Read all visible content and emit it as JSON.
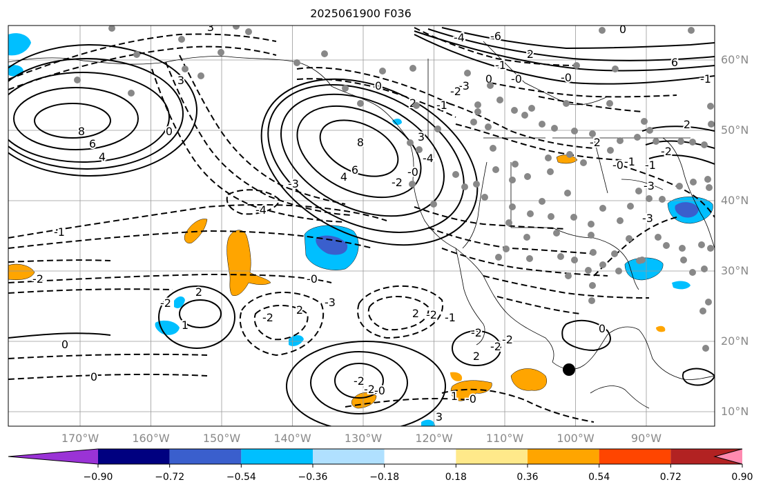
{
  "title": "2025061900 F036",
  "lat_labels": [
    {
      "text": "60°N",
      "lat": 60
    },
    {
      "text": "50°N",
      "lat": 50
    },
    {
      "text": "40°N",
      "lat": 40
    },
    {
      "text": "30°N",
      "lat": 30
    },
    {
      "text": "20°N",
      "lat": 20
    },
    {
      "text": "10°N",
      "lat": 10
    }
  ],
  "lon_labels": [
    {
      "text": "170°W",
      "lon": -170
    },
    {
      "text": "160°W",
      "lon": -160
    },
    {
      "text": "150°W",
      "lon": -150
    },
    {
      "text": "140°W",
      "lon": -140
    },
    {
      "text": "130°W",
      "lon": -130
    },
    {
      "text": "120°W",
      "lon": -120
    },
    {
      "text": "110°W",
      "lon": -110
    },
    {
      "text": "100°W",
      "lon": -100
    },
    {
      "text": "90°W",
      "lon": -90
    }
  ],
  "colorbar": {
    "colors": [
      "#9a33d6",
      "#000080",
      "#3a5fcd",
      "#00bfff",
      "#b0e0ff",
      "#ffffff",
      "#ffe98a",
      "#ffa500",
      "#ff4500",
      "#b22222",
      "#ff8ab0"
    ],
    "tick_labels": [
      "−0.90",
      "−0.72",
      "−0.54",
      "−0.36",
      "−0.18",
      "0.18",
      "0.36",
      "0.54",
      "0.72",
      "0.90"
    ]
  },
  "contour_labels": [
    "8",
    "6",
    "4",
    "8",
    "6",
    "4",
    "3",
    "-2",
    "-3",
    "-4",
    "-1",
    "-2",
    "0",
    "0",
    "-0",
    "-3",
    "2",
    "-2",
    "1",
    "2",
    "2",
    "-2",
    "-1",
    "-2",
    "-2",
    "-0",
    "-2",
    "2",
    "-2",
    "-2",
    "0",
    "1",
    "-0",
    "3",
    "-4",
    "-0",
    "-2",
    "0",
    "2",
    "-1",
    "-3",
    "0",
    "-1",
    "-0",
    "-2",
    "-0",
    "-1",
    "-3",
    "-1",
    "-2",
    "-0",
    "2",
    "2",
    "-6",
    "-4",
    "-2",
    "0",
    "6",
    "3",
    "3",
    "0",
    "-1",
    "-3"
  ]
}
